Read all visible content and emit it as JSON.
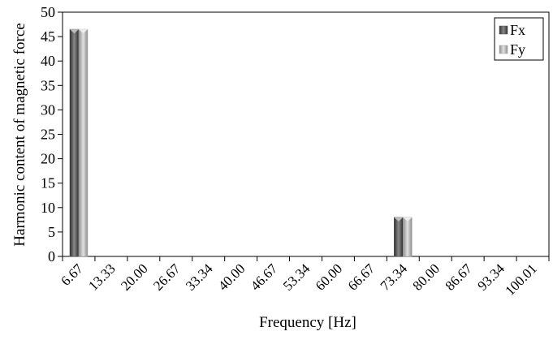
{
  "chart_data": {
    "type": "bar",
    "title": "",
    "xlabel": "Frequency [Hz]",
    "ylabel": "Harmonic content of magnetic force",
    "ylim": [
      0,
      50
    ],
    "yticks": [
      0,
      5,
      10,
      15,
      20,
      25,
      30,
      35,
      40,
      45,
      50
    ],
    "categories": [
      "6.67",
      "13.33",
      "20.00",
      "26.67",
      "33.34",
      "40.00",
      "46.67",
      "53.34",
      "60.00",
      "66.67",
      "73.34",
      "80.00",
      "86.67",
      "93.34",
      "100.01"
    ],
    "series": [
      {
        "name": "Fx",
        "color": "#555555",
        "values": [
          46.5,
          0,
          0,
          0,
          0,
          0,
          0,
          0,
          0,
          0,
          8,
          0,
          0,
          0,
          0
        ]
      },
      {
        "name": "Fy",
        "color": "#a6a6a6",
        "values": [
          46.5,
          0,
          0,
          0,
          0,
          0,
          0,
          0,
          0,
          0,
          8,
          0,
          0,
          0,
          0
        ]
      }
    ],
    "grid": false,
    "legend": "top-right"
  }
}
